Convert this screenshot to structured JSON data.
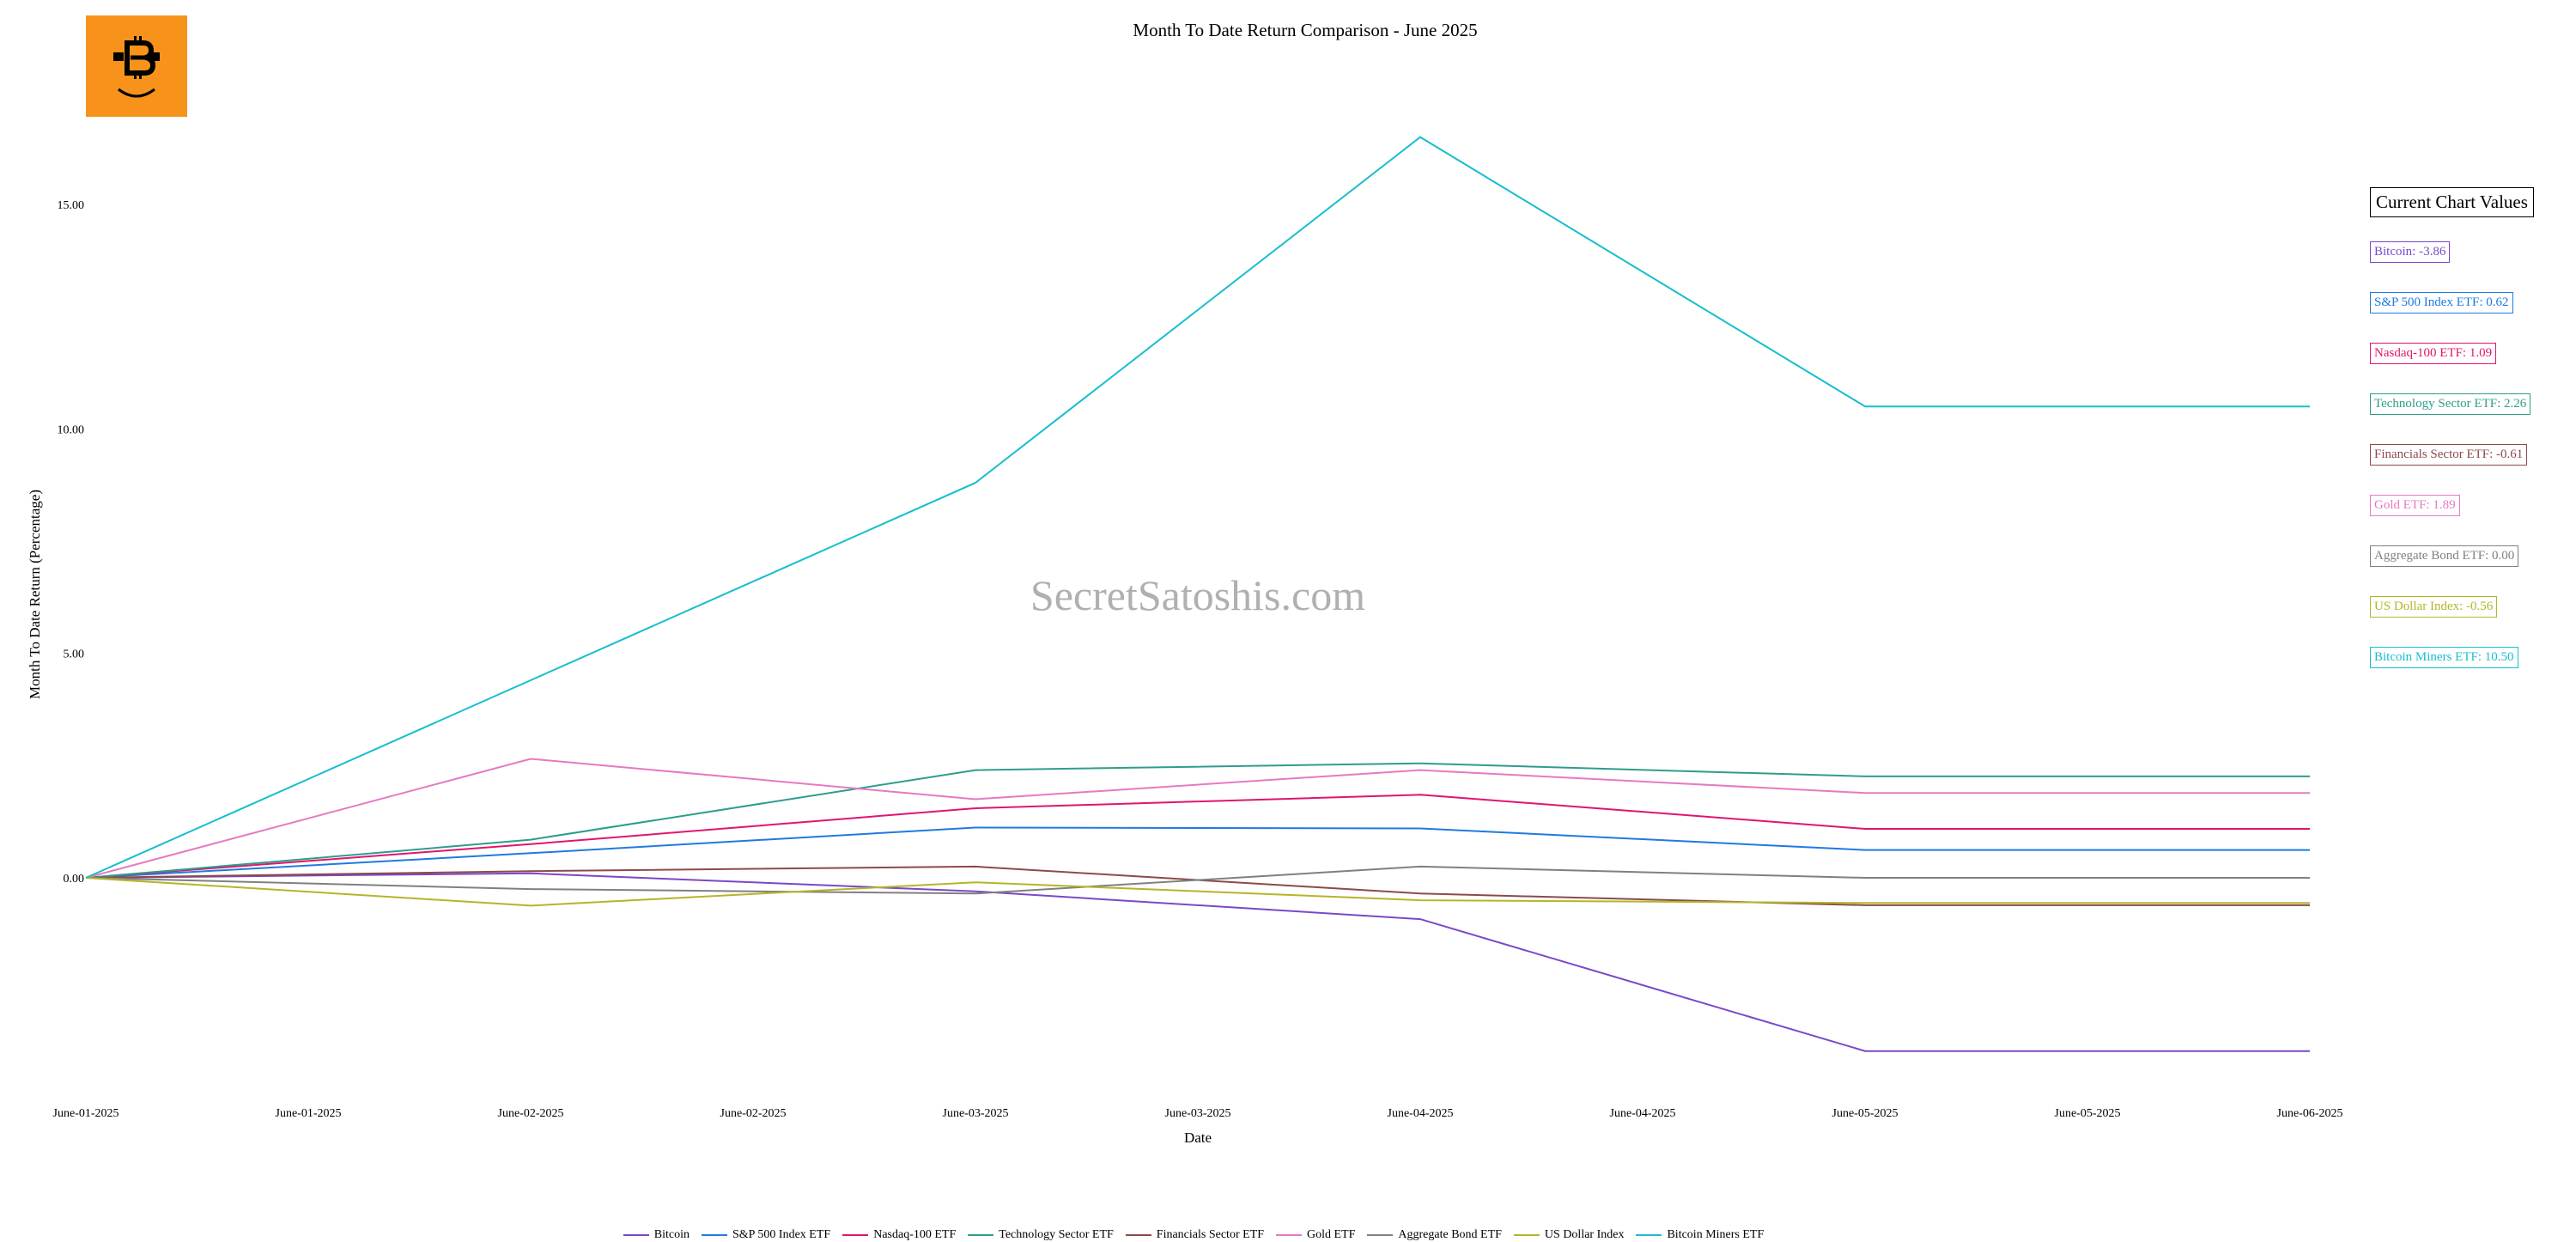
{
  "chart_data": {
    "type": "line",
    "title": "Month To Date Return Comparison - June 2025",
    "xlabel": "Date",
    "ylabel": "Month To Date Return (Percentage)",
    "x_tick_labels": [
      "June-01-2025",
      "June-01-2025",
      "June-02-2025",
      "June-02-2025",
      "June-03-2025",
      "June-03-2025",
      "June-04-2025",
      "June-04-2025",
      "June-05-2025",
      "June-05-2025",
      "June-06-2025"
    ],
    "x": [
      "2025-06-01",
      "2025-06-02",
      "2025-06-03",
      "2025-06-04",
      "2025-06-05",
      "2025-06-06"
    ],
    "y_ticks": [
      "0.00",
      "5.00",
      "10.00",
      "15.00"
    ],
    "ylim": [
      -4.9,
      17.5
    ],
    "grid": false,
    "legend_position": "bottom-center",
    "watermark": "SecretSatoshis.com",
    "series": [
      {
        "name": "Bitcoin",
        "color": "#7a48c8",
        "values": [
          0.0,
          0.1,
          -0.3,
          -0.92,
          -3.86,
          -3.86
        ]
      },
      {
        "name": "S&P 500 Index ETF",
        "color": "#1f7ae0",
        "values": [
          0.0,
          0.55,
          1.12,
          1.1,
          0.62,
          0.62
        ]
      },
      {
        "name": "Nasdaq-100 ETF",
        "color": "#e0156d",
        "values": [
          0.0,
          0.75,
          1.55,
          1.85,
          1.09,
          1.09
        ]
      },
      {
        "name": "Technology Sector ETF",
        "color": "#2e9d8a",
        "values": [
          0.0,
          0.85,
          2.4,
          2.55,
          2.26,
          2.26
        ]
      },
      {
        "name": "Financials Sector ETF",
        "color": "#8c4a4a",
        "values": [
          0.0,
          0.15,
          0.25,
          -0.35,
          -0.61,
          -0.61
        ]
      },
      {
        "name": "Gold ETF",
        "color": "#e57ac2",
        "values": [
          0.0,
          2.65,
          1.75,
          2.4,
          1.89,
          1.89
        ]
      },
      {
        "name": "Aggregate Bond ETF",
        "color": "#808080",
        "values": [
          0.0,
          -0.25,
          -0.35,
          0.25,
          0.0,
          0.0
        ]
      },
      {
        "name": "US Dollar Index",
        "color": "#b5b52a",
        "values": [
          0.0,
          -0.62,
          -0.1,
          -0.5,
          -0.56,
          -0.56
        ]
      },
      {
        "name": "Bitcoin Miners ETF",
        "color": "#17becf",
        "values": [
          0.0,
          4.4,
          8.8,
          16.5,
          10.5,
          10.5
        ]
      }
    ]
  },
  "current_values": {
    "title": "Current Chart Values",
    "items": [
      {
        "text": "Bitcoin: -3.86",
        "color": "#7a48c8"
      },
      {
        "text": "S&P 500 Index ETF: 0.62",
        "color": "#1f7ae0"
      },
      {
        "text": "Nasdaq-100 ETF: 1.09",
        "color": "#e0156d"
      },
      {
        "text": "Technology Sector ETF: 2.26",
        "color": "#2e9d8a"
      },
      {
        "text": "Financials Sector ETF: -0.61",
        "color": "#8c4a4a"
      },
      {
        "text": "Gold ETF: 1.89",
        "color": "#e57ac2"
      },
      {
        "text": "Aggregate Bond ETF: 0.00",
        "color": "#808080"
      },
      {
        "text": "US Dollar Index: -0.56",
        "color": "#b5b52a"
      },
      {
        "text": "Bitcoin Miners ETF: 10.50",
        "color": "#17becf"
      }
    ]
  },
  "logo": {
    "icon": "bitcoin-smile-icon",
    "color": "#f7931a"
  }
}
